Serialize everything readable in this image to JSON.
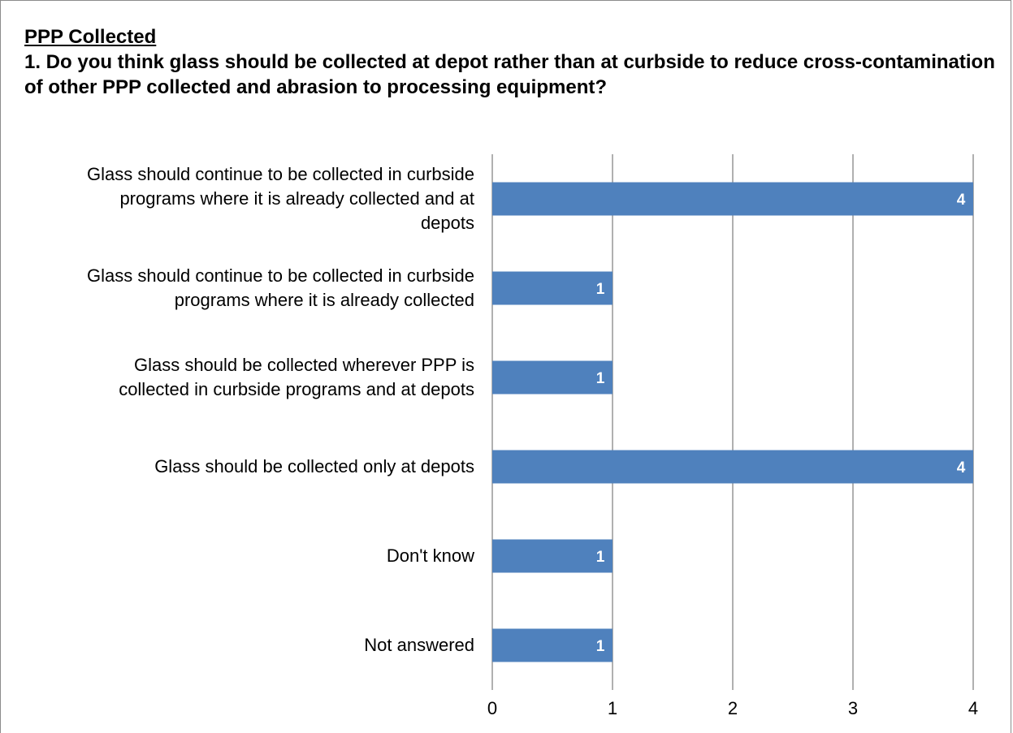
{
  "header": {
    "section_title": "PPP Collected",
    "question": "1. Do you think glass should be collected at depot rather than at curbside to reduce cross-contamination of other PPP collected and abrasion to processing equipment?"
  },
  "colors": {
    "bar": "#4f81bd",
    "gridline": "#868686",
    "data_label": "#ffffff"
  },
  "chart_data": {
    "type": "bar",
    "orientation": "horizontal",
    "categories": [
      "Glass should continue to be collected in curbside programs where it is already collected and at depots",
      "Glass should continue to be collected in curbside programs where it is already collected",
      "Glass should be collected wherever PPP is collected in curbside programs and at depots",
      "Glass should be collected only at depots",
      "Don't know",
      "Not answered"
    ],
    "category_lines": [
      [
        "Glass should continue to be collected in curbside",
        "programs where it is already collected and at",
        "depots"
      ],
      [
        "Glass should continue to be collected in curbside",
        "programs where it is already collected"
      ],
      [
        "Glass should be collected wherever PPP is",
        "collected in curbside programs and at depots"
      ],
      [
        "Glass should be collected only at depots"
      ],
      [
        "Don't know"
      ],
      [
        "Not answered"
      ]
    ],
    "values": [
      4,
      1,
      1,
      4,
      1,
      1
    ],
    "data_labels": [
      "4",
      "1",
      "1",
      "4",
      "1",
      "1"
    ],
    "xlim": [
      0,
      4
    ],
    "xticks": [
      "0",
      "1",
      "2",
      "3",
      "4"
    ],
    "grid": true,
    "legend": "none"
  }
}
